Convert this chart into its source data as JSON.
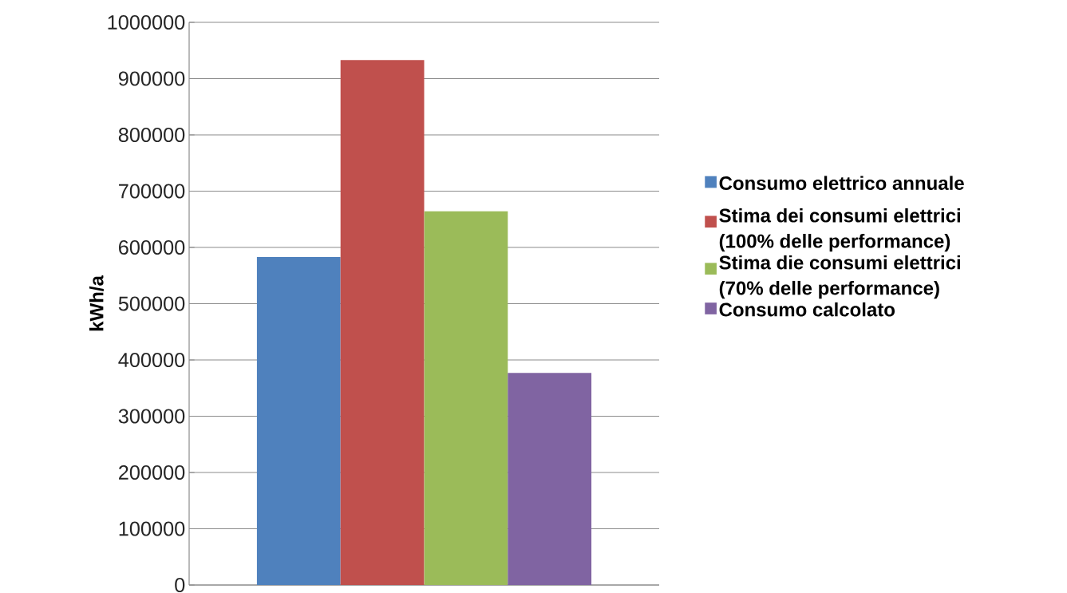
{
  "chart_data": {
    "type": "bar",
    "ylabel": "kWh/a",
    "categories": [
      null
    ],
    "series": [
      {
        "name": "Consumo elettrico annuale",
        "color": "#4f81bd",
        "values": [
          583000
        ]
      },
      {
        "name": "Stima dei consumi elettrici (100% delle performance)",
        "color": "#c0504d",
        "values": [
          933000
        ]
      },
      {
        "name": "Stima die consumi elettrici (70% delle performance)",
        "color": "#9bbb59",
        "values": [
          664000
        ]
      },
      {
        "name": "Consumo calcolato",
        "color": "#8064a2",
        "values": [
          377000
        ]
      }
    ],
    "ylim": [
      0,
      1000000
    ],
    "yticks": [
      0,
      100000,
      200000,
      300000,
      400000,
      500000,
      600000,
      700000,
      800000,
      900000,
      1000000
    ],
    "grid": "y",
    "legend": "right"
  }
}
